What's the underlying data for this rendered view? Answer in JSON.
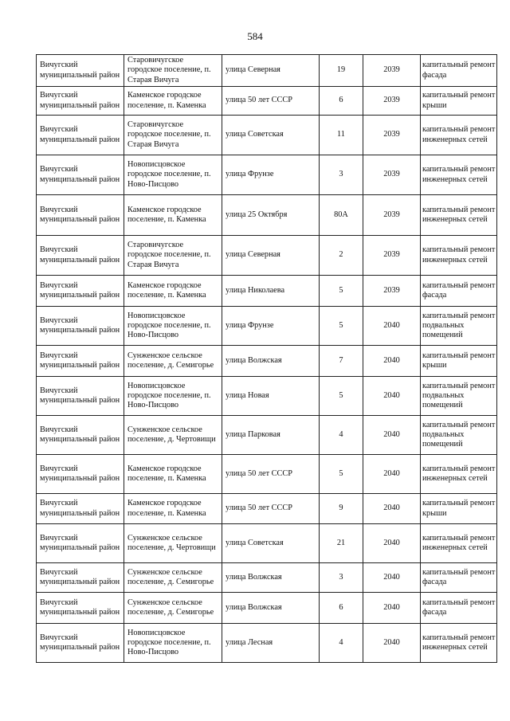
{
  "page_number": "584",
  "rows": [
    {
      "district": "Вичугский муниципальный район",
      "settlement": "Старовичугское городское поселение, п. Старая Вичуга",
      "street": "улица  Северная",
      "house": "19",
      "year": "2039",
      "work": "капитальный ремонт фасада"
    },
    {
      "district": "Вичугский муниципальный район",
      "settlement": "Каменское городское поселение, п. Каменка",
      "street": "улица 50 лет СССР",
      "house": "6",
      "year": "2039",
      "work": "капитальный ремонт крыши"
    },
    {
      "district": "Вичугский муниципальный район",
      "settlement": "Старовичугское городское поселение, п. Старая Вичуга",
      "street": "улица Советская",
      "house": "11",
      "year": "2039",
      "work": "капитальный ремонт инженерных сетей"
    },
    {
      "district": "Вичугский муниципальный район",
      "settlement": "Новописцовское городское поселение, п. Ново-Писцово",
      "street": "улица Фрунзе",
      "house": "3",
      "year": "2039",
      "work": "капитальный ремонт инженерных сетей"
    },
    {
      "district": "Вичугский муниципальный район",
      "settlement": "Каменское городское поселение, п. Каменка",
      "street": "улица 25 Октября",
      "house": "80А",
      "year": "2039",
      "work": "капитальный ремонт инженерных сетей"
    },
    {
      "district": "Вичугский муниципальный район",
      "settlement": "Старовичугское городское поселение, п. Старая Вичуга",
      "street": "улица  Северная",
      "house": "2",
      "year": "2039",
      "work": "капитальный ремонт инженерных сетей"
    },
    {
      "district": "Вичугский муниципальный район",
      "settlement": "Каменское городское поселение, п. Каменка",
      "street": "улица Николаева",
      "house": "5",
      "year": "2039",
      "work": "капитальный ремонт фасада"
    },
    {
      "district": "Вичугский муниципальный район",
      "settlement": "Новописцовское городское поселение, п. Ново-Писцово",
      "street": "улица Фрунзе",
      "house": "5",
      "year": "2040",
      "work": "капитальный ремонт подвальных помещений"
    },
    {
      "district": "Вичугский муниципальный район",
      "settlement": "Сунженское сельское поселение, д. Семигорье",
      "street": "улица  Волжская",
      "house": "7",
      "year": "2040",
      "work": "капитальный ремонт крыши"
    },
    {
      "district": "Вичугский муниципальный район",
      "settlement": "Новописцовское городское поселение, п. Ново-Писцово",
      "street": "улица Новая",
      "house": "5",
      "year": "2040",
      "work": "капитальный ремонт подвальных помещений"
    },
    {
      "district": "Вичугский муниципальный район",
      "settlement": "Сунженское сельское поселение, д. Чертовищи",
      "street": "улица Парковая",
      "house": "4",
      "year": "2040",
      "work": "капитальный ремонт подвальных помещений"
    },
    {
      "district": "Вичугский муниципальный район",
      "settlement": "Каменское городское поселение, п. Каменка",
      "street": "улица 50 лет СССР",
      "house": "5",
      "year": "2040",
      "work": "капитальный ремонт инженерных сетей"
    },
    {
      "district": "Вичугский муниципальный район",
      "settlement": "Каменское городское поселение, п. Каменка",
      "street": "улица 50 лет СССР",
      "house": "9",
      "year": "2040",
      "work": "капитальный ремонт крыши"
    },
    {
      "district": "Вичугский муниципальный район",
      "settlement": "Сунженское сельское поселение, д. Чертовищи",
      "street": "улица Советская",
      "house": "21",
      "year": "2040",
      "work": "капитальный ремонт инженерных сетей"
    },
    {
      "district": "Вичугский муниципальный район",
      "settlement": "Сунженское сельское поселение, д. Семигорье",
      "street": "улица  Волжская",
      "house": "3",
      "year": "2040",
      "work": "капитальный ремонт фасада"
    },
    {
      "district": "Вичугский муниципальный район",
      "settlement": "Сунженское сельское поселение, д. Семигорье",
      "street": "улица  Волжская",
      "house": "6",
      "year": "2040",
      "work": "капитальный ремонт фасада"
    },
    {
      "district": "Вичугский муниципальный район",
      "settlement": "Новописцовское городское поселение, п. Ново-Писцово",
      "street": "улица Лесная",
      "house": "4",
      "year": "2040",
      "work": "капитальный ремонт инженерных сетей"
    }
  ]
}
